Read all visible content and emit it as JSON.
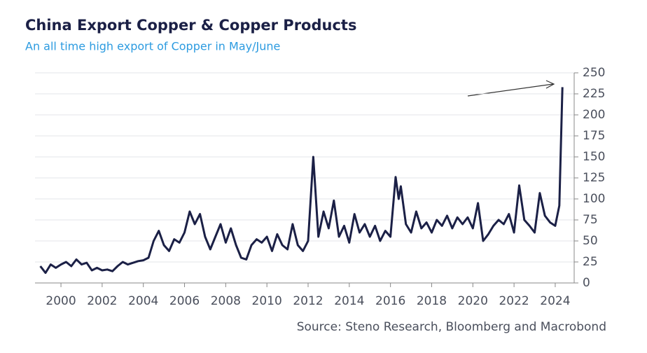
{
  "chart_data": {
    "type": "line",
    "title": "China Export Copper & Copper Products",
    "subtitle": "An all time high export of Copper in May/June",
    "source": "Source: Steno Research, Bloomberg and Macrobond",
    "x": [
      1999.0,
      1999.25,
      1999.5,
      1999.75,
      2000.0,
      2000.25,
      2000.5,
      2000.75,
      2001.0,
      2001.25,
      2001.5,
      2001.75,
      2002.0,
      2002.25,
      2002.5,
      2002.75,
      2003.0,
      2003.25,
      2003.5,
      2003.75,
      2004.0,
      2004.25,
      2004.5,
      2004.75,
      2005.0,
      2005.25,
      2005.5,
      2005.75,
      2006.0,
      2006.25,
      2006.5,
      2006.75,
      2007.0,
      2007.25,
      2007.5,
      2007.75,
      2008.0,
      2008.25,
      2008.5,
      2008.75,
      2009.0,
      2009.25,
      2009.5,
      2009.75,
      2010.0,
      2010.25,
      2010.5,
      2010.75,
      2011.0,
      2011.25,
      2011.5,
      2011.75,
      2012.0,
      2012.25,
      2012.5,
      2012.75,
      2013.0,
      2013.25,
      2013.5,
      2013.75,
      2014.0,
      2014.25,
      2014.5,
      2014.75,
      2015.0,
      2015.25,
      2015.5,
      2015.75,
      2016.0,
      2016.25,
      2016.4,
      2016.5,
      2016.75,
      2017.0,
      2017.25,
      2017.5,
      2017.75,
      2018.0,
      2018.25,
      2018.5,
      2018.75,
      2019.0,
      2019.25,
      2019.5,
      2019.75,
      2020.0,
      2020.25,
      2020.5,
      2020.75,
      2021.0,
      2021.25,
      2021.5,
      2021.75,
      2022.0,
      2022.25,
      2022.5,
      2022.75,
      2023.0,
      2023.25,
      2023.5,
      2023.75,
      2024.0,
      2024.2,
      2024.35
    ],
    "series": [
      {
        "color": "#1b2046",
        "values": [
          20,
          12,
          22,
          18,
          22,
          25,
          20,
          28,
          22,
          24,
          15,
          18,
          15,
          16,
          14,
          20,
          25,
          22,
          24,
          26,
          27,
          30,
          50,
          62,
          45,
          38,
          52,
          48,
          60,
          85,
          70,
          82,
          55,
          40,
          55,
          70,
          48,
          65,
          45,
          30,
          28,
          45,
          52,
          48,
          55,
          38,
          58,
          45,
          40,
          70,
          45,
          38,
          50,
          150,
          55,
          85,
          65,
          98,
          55,
          68,
          48,
          82,
          60,
          70,
          55,
          68,
          50,
          62,
          55,
          126,
          100,
          115,
          70,
          60,
          85,
          65,
          72,
          60,
          75,
          68,
          80,
          65,
          78,
          70,
          78,
          65,
          95,
          50,
          58,
          68,
          75,
          70,
          82,
          60,
          116,
          75,
          68,
          60,
          107,
          80,
          72,
          68,
          92,
          233
        ]
      }
    ],
    "xlim": [
      1998.74,
      2024.92
    ],
    "xticks": [
      2000,
      2002,
      2004,
      2006,
      2008,
      2010,
      2012,
      2014,
      2016,
      2018,
      2020,
      2022,
      2024
    ],
    "ylim": [
      0,
      250
    ],
    "yticks": [
      0,
      25,
      50,
      75,
      100,
      125,
      150,
      175,
      200,
      225,
      250
    ],
    "grid": true
  }
}
